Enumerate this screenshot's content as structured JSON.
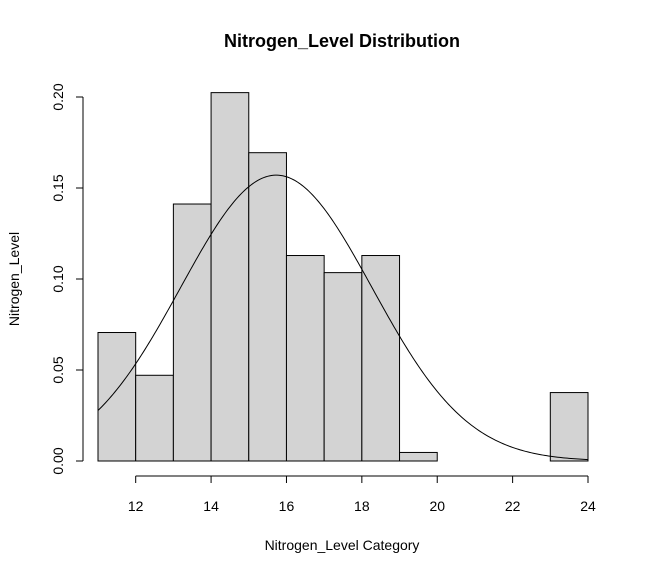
{
  "chart_data": {
    "type": "bar",
    "title": "Nitrogen_Level Distribution",
    "xlabel": "Nitrogen_Level Category",
    "ylabel": "Nitrogen_Level",
    "xlim": [
      11,
      24
    ],
    "ylim": [
      0,
      0.2
    ],
    "x_ticks": [
      "12",
      "14",
      "16",
      "18",
      "20",
      "22",
      "24"
    ],
    "y_ticks": [
      "0.00",
      "0.05",
      "0.10",
      "0.15",
      "0.20"
    ],
    "bins": [
      {
        "x0": 11,
        "x1": 12,
        "value": 0.0706
      },
      {
        "x0": 12,
        "x1": 13,
        "value": 0.0471
      },
      {
        "x0": 13,
        "x1": 14,
        "value": 0.1412
      },
      {
        "x0": 14,
        "x1": 15,
        "value": 0.2024
      },
      {
        "x0": 15,
        "x1": 16,
        "value": 0.1694
      },
      {
        "x0": 16,
        "x1": 17,
        "value": 0.1129
      },
      {
        "x0": 17,
        "x1": 18,
        "value": 0.1035
      },
      {
        "x0": 18,
        "x1": 19,
        "value": 0.1129
      },
      {
        "x0": 19,
        "x1": 20,
        "value": 0.0047
      },
      {
        "x0": 20,
        "x1": 21,
        "value": 0
      },
      {
        "x0": 21,
        "x1": 22,
        "value": 0
      },
      {
        "x0": 22,
        "x1": 23,
        "value": 0
      },
      {
        "x0": 23,
        "x1": 24,
        "value": 0.0376
      }
    ],
    "density_curve": {
      "type": "normal",
      "mean": 15.73,
      "sd": 2.54
    },
    "grid": false
  }
}
